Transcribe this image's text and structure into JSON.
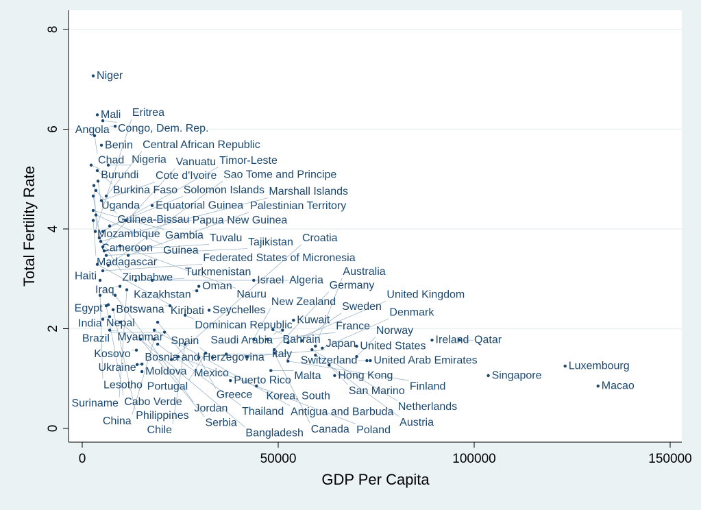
{
  "chart_data": {
    "type": "scatter",
    "title": "",
    "xlabel": "GDP Per Capita",
    "ylabel": "Total Fertility Rate",
    "xlim": [
      0,
      150000
    ],
    "ylim": [
      0,
      8
    ],
    "xticks": [
      "0",
      "50000",
      "100000",
      "150000"
    ],
    "xtick_values": [
      0,
      50000,
      100000,
      150000
    ],
    "yticks": [
      "0",
      "2",
      "4",
      "6",
      "8"
    ],
    "ytick_values": [
      0,
      2,
      4,
      6,
      8
    ],
    "grid": true,
    "marker_color": "#1a476f",
    "points": [
      {
        "label": "Niger",
        "x": 2800,
        "y": 7.07
      },
      {
        "label": "Mali",
        "x": 3850,
        "y": 6.29
      },
      {
        "label": "Congo, Dem. Rep.",
        "x": 5250,
        "y": 6.17
      },
      {
        "label": "Angola",
        "x": 8400,
        "y": 6.06
      },
      {
        "label": "Chad",
        "x": 3150,
        "y": 5.87
      },
      {
        "label": "Benin",
        "x": 4900,
        "y": 5.68
      },
      {
        "label": "Burundi",
        "x": 2275,
        "y": 5.28
      },
      {
        "label": "Nigeria",
        "x": 6650,
        "y": 5.28
      },
      {
        "label": "Burkina Faso",
        "x": 3850,
        "y": 5.17
      },
      {
        "label": "Uganda",
        "x": 4025,
        "y": 4.96
      },
      {
        "label": "Mozambique",
        "x": 2975,
        "y": 4.87
      },
      {
        "label": "Guinea-Bissau",
        "x": 3500,
        "y": 4.77
      },
      {
        "label": "Central African Republic",
        "x": 6125,
        "y": 4.66
      },
      {
        "label": "Cameroon",
        "x": 2800,
        "y": 4.66
      },
      {
        "label": "Cote d'Ivoire",
        "x": 4900,
        "y": 4.57
      },
      {
        "label": "Equatorial Guinea",
        "x": 17850,
        "y": 4.47
      },
      {
        "label": "Gambia",
        "x": 2800,
        "y": 4.37
      },
      {
        "label": "Guinea",
        "x": 3500,
        "y": 4.28
      },
      {
        "label": "Papua New Guinea",
        "x": 11200,
        "y": 4.17
      },
      {
        "label": "Madagascar",
        "x": 2800,
        "y": 4.17
      },
      {
        "label": "Solomon Islands",
        "x": 7000,
        "y": 4.06
      },
      {
        "label": "Timor-Leste",
        "x": 5250,
        "y": 3.95
      },
      {
        "label": "Eritrea",
        "x": 3325,
        "y": 3.95
      },
      {
        "label": "Zimbabwe",
        "x": 4375,
        "y": 3.82
      },
      {
        "label": "Marshall Islands",
        "x": 4725,
        "y": 3.75
      },
      {
        "label": "Vanuatu",
        "x": 5250,
        "y": 3.64
      },
      {
        "label": "Nauru",
        "x": 9625,
        "y": 3.66
      },
      {
        "label": "Tuvalu",
        "x": 5600,
        "y": 3.56
      },
      {
        "label": "Tajikistan",
        "x": 6125,
        "y": 3.47
      },
      {
        "label": "Palestinian Territory",
        "x": 11725,
        "y": 3.47
      },
      {
        "label": "Kiribati",
        "x": 3850,
        "y": 3.29
      },
      {
        "label": "Sao Tome and Principe",
        "x": 6650,
        "y": 3.27
      },
      {
        "label": "Federated States of Micronesia",
        "x": 5250,
        "y": 3.16
      },
      {
        "label": "Haiti",
        "x": 4550,
        "y": 2.97
      },
      {
        "label": "Algeria",
        "x": 13650,
        "y": 2.97
      },
      {
        "label": "Turkmenistan",
        "x": 17850,
        "y": 2.97
      },
      {
        "label": "Israel",
        "x": 43750,
        "y": 2.97
      },
      {
        "label": "Iraq",
        "x": 9625,
        "y": 2.85
      },
      {
        "label": "Oman",
        "x": 29750,
        "y": 2.85
      },
      {
        "label": "Suriname",
        "x": 11375,
        "y": 2.78
      },
      {
        "label": "Kazakhstan",
        "x": 29225,
        "y": 2.76
      },
      {
        "label": "Lesotho",
        "x": 4550,
        "y": 2.67
      },
      {
        "label": "Jordan",
        "x": 8400,
        "y": 2.67
      },
      {
        "label": "Egypt",
        "x": 6650,
        "y": 2.48
      },
      {
        "label": "Cabo Verde",
        "x": 6125,
        "y": 2.46
      },
      {
        "label": "Botswana",
        "x": 22400,
        "y": 2.46
      },
      {
        "label": "Philippines",
        "x": 7875,
        "y": 2.38
      },
      {
        "label": "Seychelles",
        "x": 32375,
        "y": 2.37
      },
      {
        "label": "Dominican Republic",
        "x": 26250,
        "y": 2.27
      },
      {
        "label": "India",
        "x": 7000,
        "y": 2.24
      },
      {
        "label": "Nepal",
        "x": 5250,
        "y": 2.19
      },
      {
        "label": "Kuwait",
        "x": 53900,
        "y": 2.17
      },
      {
        "label": "Bangladesh",
        "x": 9625,
        "y": 2.13
      },
      {
        "label": "Mexico",
        "x": 19250,
        "y": 2.13
      },
      {
        "label": "Myanmar",
        "x": 7000,
        "y": 1.97
      },
      {
        "label": "Antigua and Barbuda",
        "x": 18375,
        "y": 1.97
      },
      {
        "label": "Bahrain",
        "x": 48650,
        "y": 1.98
      },
      {
        "label": "Saudi Arabia",
        "x": 51100,
        "y": 1.97
      },
      {
        "label": "Brazil",
        "x": 21000,
        "y": 1.93
      },
      {
        "label": "China",
        "x": 18375,
        "y": 1.79
      },
      {
        "label": "Serbia",
        "x": 14875,
        "y": 1.79
      },
      {
        "label": "France",
        "x": 47250,
        "y": 1.79
      },
      {
        "label": "New Zealand",
        "x": 43750,
        "y": 1.79
      },
      {
        "label": "Ireland",
        "x": 89250,
        "y": 1.77
      },
      {
        "label": "Qatar",
        "x": 96250,
        "y": 1.77
      },
      {
        "label": "Sweden",
        "x": 56000,
        "y": 1.76
      },
      {
        "label": "United Kingdom",
        "x": 52500,
        "y": 1.72
      },
      {
        "label": "Thailand",
        "x": 19250,
        "y": 1.69
      },
      {
        "label": "Chile",
        "x": 26250,
        "y": 1.69
      },
      {
        "label": "United States",
        "x": 70000,
        "y": 1.65
      },
      {
        "label": "Australia",
        "x": 59500,
        "y": 1.65
      },
      {
        "label": "Denmark",
        "x": 61250,
        "y": 1.61
      },
      {
        "label": "Germany",
        "x": 49000,
        "y": 1.58
      },
      {
        "label": "Netherlands",
        "x": 58625,
        "y": 1.58
      },
      {
        "label": "Kosovo",
        "x": 13825,
        "y": 1.57
      },
      {
        "label": "Canada",
        "x": 49000,
        "y": 1.51
      },
      {
        "label": "Portugal",
        "x": 31500,
        "y": 1.51
      },
      {
        "label": "Italy",
        "x": 36750,
        "y": 1.49
      },
      {
        "label": "Austria",
        "x": 59500,
        "y": 1.47
      },
      {
        "label": "Norway",
        "x": 70000,
        "y": 1.44
      },
      {
        "label": "Japan",
        "x": 42000,
        "y": 1.44
      },
      {
        "label": "Poland",
        "x": 24500,
        "y": 1.44
      },
      {
        "label": "Spain",
        "x": 33250,
        "y": 1.42
      },
      {
        "label": "Greece",
        "x": 29750,
        "y": 1.42
      },
      {
        "label": "Croatia",
        "x": 22750,
        "y": 1.38
      },
      {
        "label": "Switzerland",
        "x": 72625,
        "y": 1.36
      },
      {
        "label": "United Arab Emirates",
        "x": 73500,
        "y": 1.36
      },
      {
        "label": "Finland",
        "x": 52500,
        "y": 1.35
      },
      {
        "label": "Ukraine",
        "x": 15225,
        "y": 1.29
      },
      {
        "label": "Bosnia and Herzegovina",
        "x": 14000,
        "y": 1.28
      },
      {
        "label": "San Marino",
        "x": 63000,
        "y": 1.27
      },
      {
        "label": "Luxembourg",
        "x": 123200,
        "y": 1.25
      },
      {
        "label": "Malta",
        "x": 48125,
        "y": 1.16
      },
      {
        "label": "Moldova",
        "x": 15225,
        "y": 1.14
      },
      {
        "label": "Hong Kong",
        "x": 64400,
        "y": 1.06
      },
      {
        "label": "Singapore",
        "x": 103600,
        "y": 1.06
      },
      {
        "label": "Puerto Rico",
        "x": 37800,
        "y": 0.96
      },
      {
        "label": "Korea, South",
        "x": 44450,
        "y": 0.85
      },
      {
        "label": "Macao",
        "x": 131600,
        "y": 0.85
      }
    ]
  }
}
